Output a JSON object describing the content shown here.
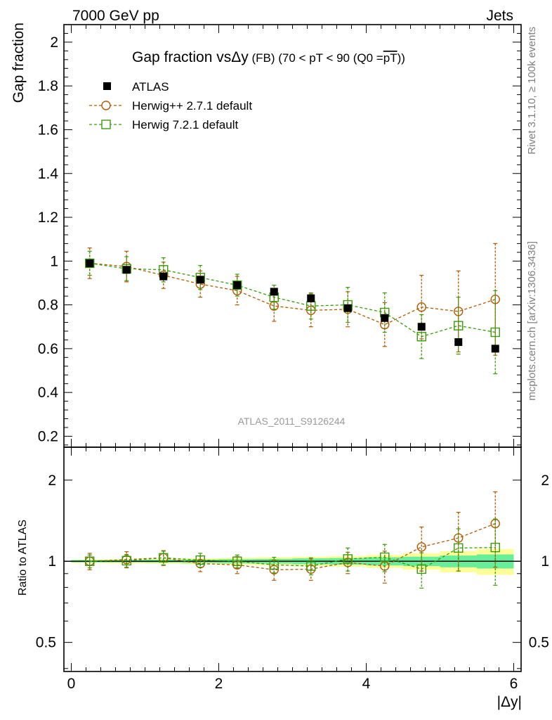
{
  "header": {
    "left": "7000 GeV pp",
    "right": "Jets"
  },
  "title": {
    "main": "Gap fraction vs",
    "delta_y": "Δy",
    "detail": " (FB) (70 < pT <  90 (Q0 =",
    "overline": "pT",
    "close": "))"
  },
  "side_labels": {
    "rivet": "Rivet 3.1.10, ≥ 100k events",
    "mcplots": "mcplots.cern.ch [arXiv:1306.3436]"
  },
  "watermark": "ATLAS_2011_S9126244",
  "legend": [
    {
      "label": "ATLAS",
      "marker": "filled-square",
      "color": "#000000"
    },
    {
      "label": "Herwig++ 2.7.1 default",
      "marker": "open-circle",
      "color": "#b35900"
    },
    {
      "label": "Herwig 7.2.1 default",
      "marker": "open-square",
      "color": "#3a9a0a"
    }
  ],
  "axes": {
    "main_ylabel": "Gap fraction",
    "ratio_ylabel": "Ratio to ATLAS",
    "xlabel": "|Δy|",
    "x_ticks": [
      "0",
      "2",
      "4",
      "6"
    ],
    "main_y_ticks": [
      "0.2",
      "0.4",
      "0.6",
      "0.8",
      "1",
      "1.2",
      "1.4",
      "1.6",
      "1.8",
      "2"
    ],
    "ratio_y_ticks": [
      "0.5",
      "1",
      "2"
    ]
  },
  "chart_data": {
    "type": "scatter",
    "x": [
      0.25,
      0.75,
      1.25,
      1.75,
      2.25,
      2.75,
      3.25,
      3.75,
      4.25,
      4.75,
      5.25,
      5.75
    ],
    "xlim": [
      -0.1,
      6.1
    ],
    "main": {
      "ylim": [
        0.15,
        2.08
      ],
      "series": [
        {
          "name": "ATLAS",
          "values": [
            0.99,
            0.96,
            0.93,
            0.915,
            0.89,
            0.86,
            0.83,
            0.785,
            0.74,
            0.7,
            0.63,
            0.6
          ],
          "err": [
            0.01,
            0.01,
            0.01,
            0.01,
            0.01,
            0.01,
            0.015,
            0.015,
            0.015,
            0.015,
            0.02,
            0.02
          ]
        },
        {
          "name": "Herwig++ 2.7.1 default",
          "values": [
            0.99,
            0.975,
            0.935,
            0.895,
            0.865,
            0.795,
            0.775,
            0.78,
            0.71,
            0.79,
            0.77,
            0.825
          ],
          "err": [
            0.07,
            0.07,
            0.06,
            0.06,
            0.065,
            0.07,
            0.075,
            0.08,
            0.1,
            0.145,
            0.185,
            0.255
          ]
        },
        {
          "name": "Herwig 7.2.1 default",
          "values": [
            0.99,
            0.965,
            0.96,
            0.925,
            0.89,
            0.835,
            0.795,
            0.8,
            0.765,
            0.655,
            0.705,
            0.675
          ],
          "err": [
            0.055,
            0.055,
            0.055,
            0.055,
            0.05,
            0.055,
            0.06,
            0.08,
            0.09,
            0.1,
            0.13,
            0.19
          ]
        }
      ]
    },
    "ratio": {
      "ylim": [
        0.39,
        2.65
      ],
      "log": true,
      "band_inner": [
        0.01,
        0.01,
        0.012,
        0.015,
        0.018,
        0.02,
        0.025,
        0.028,
        0.035,
        0.04,
        0.05,
        0.06
      ],
      "band_outer": [
        0.015,
        0.018,
        0.02,
        0.025,
        0.03,
        0.035,
        0.04,
        0.045,
        0.055,
        0.07,
        0.09,
        0.11
      ],
      "series": [
        {
          "name": "Herwig++ 2.7.1 default",
          "values": [
            1.0,
            1.015,
            1.03,
            0.98,
            0.97,
            0.93,
            0.935,
            0.99,
            0.96,
            1.13,
            1.22,
            1.38
          ],
          "err": [
            0.07,
            0.07,
            0.065,
            0.065,
            0.07,
            0.08,
            0.085,
            0.09,
            0.13,
            0.21,
            0.3,
            0.43
          ]
        },
        {
          "name": "Herwig 7.2.1 default",
          "values": [
            1.0,
            1.005,
            1.03,
            1.01,
            1.0,
            0.97,
            0.96,
            1.02,
            1.035,
            0.935,
            1.12,
            1.125
          ],
          "err": [
            0.055,
            0.055,
            0.06,
            0.06,
            0.055,
            0.065,
            0.07,
            0.1,
            0.12,
            0.14,
            0.2,
            0.31
          ]
        }
      ]
    }
  }
}
